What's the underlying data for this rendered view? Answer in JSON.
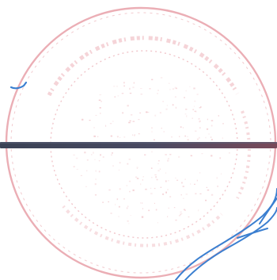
{
  "scan": {
    "background_color": "#ffffff",
    "stamp": {
      "shape": "circular-seal",
      "color": "#e8a0a8",
      "legible_text": ""
    },
    "rule_line": {
      "color_start": "#3a4255",
      "color_end": "#7a4a5a"
    },
    "ink_marks": {
      "color": "#3b7fd0",
      "kind": "handwritten-signature"
    }
  }
}
